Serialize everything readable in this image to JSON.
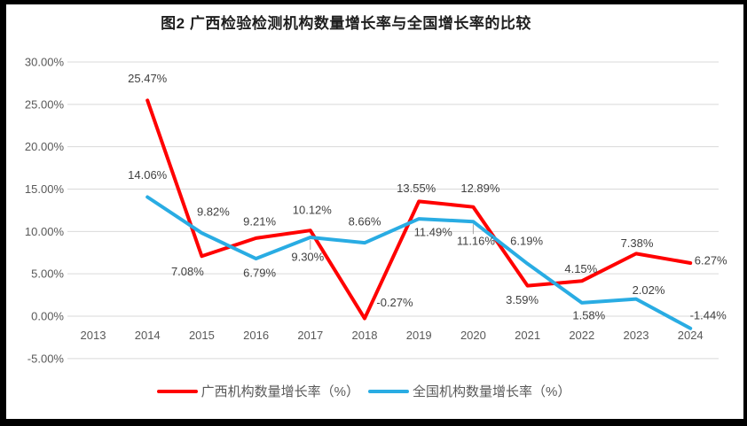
{
  "chart_data": {
    "type": "line",
    "title": "图2 广西检验检测机构数量增长率与全国增长率的比较",
    "categories": [
      "2013",
      "2014",
      "2015",
      "2016",
      "2017",
      "2018",
      "2019",
      "2020",
      "2021",
      "2022",
      "2023",
      "2024"
    ],
    "series": [
      {
        "name": "广西机构数量增长率（%）",
        "color": "#ff0000",
        "values": [
          null,
          25.47,
          7.08,
          9.21,
          10.12,
          -0.27,
          13.55,
          12.89,
          3.59,
          4.15,
          7.38,
          6.27
        ],
        "label_offsets": [
          [
            0,
            0
          ],
          [
            0,
            -25
          ],
          [
            -16,
            17
          ],
          [
            4,
            -19
          ],
          [
            2,
            -23
          ],
          [
            34,
            -18
          ],
          [
            -3,
            -15
          ],
          [
            8,
            -21
          ],
          [
            -6,
            16
          ],
          [
            -1,
            -14
          ],
          [
            1,
            -12
          ],
          [
            23,
            -3
          ]
        ]
      },
      {
        "name": "全国机构数量增长率（%）",
        "color": "#29ace3",
        "values": [
          null,
          14.06,
          9.82,
          6.79,
          9.3,
          8.66,
          11.49,
          11.16,
          6.19,
          1.58,
          2.02,
          -1.44
        ],
        "label_offsets": [
          [
            0,
            0
          ],
          [
            0,
            -25
          ],
          [
            13,
            -24
          ],
          [
            4,
            16
          ],
          [
            -3,
            22
          ],
          [
            0,
            -24
          ],
          [
            16,
            15
          ],
          [
            3,
            22
          ],
          [
            -1,
            -26
          ],
          [
            8,
            14
          ],
          [
            14,
            -10
          ],
          [
            20,
            -15
          ]
        ]
      }
    ],
    "y_axis": {
      "ticks": [
        30,
        25,
        20,
        15,
        10,
        5,
        0,
        -5
      ],
      "tick_labels": [
        "30.00%",
        "25.00%",
        "20.00%",
        "15.00%",
        "10.00%",
        "5.00%",
        "0.00%",
        "-5.00%"
      ],
      "ylim": [
        -5,
        30
      ],
      "format": "percent-2-decimals"
    },
    "grid": true,
    "legend_position": "bottom",
    "leader_lines": [
      {
        "series": 1,
        "index": 4
      },
      {
        "series": 1,
        "index": 7
      }
    ]
  },
  "colors": {
    "grid": "#d9d9d9",
    "axis_text": "#595959",
    "data_label": "#3f3f3f",
    "leader": "#a6a6a6",
    "frame": "#000000",
    "background": "#ffffff"
  }
}
